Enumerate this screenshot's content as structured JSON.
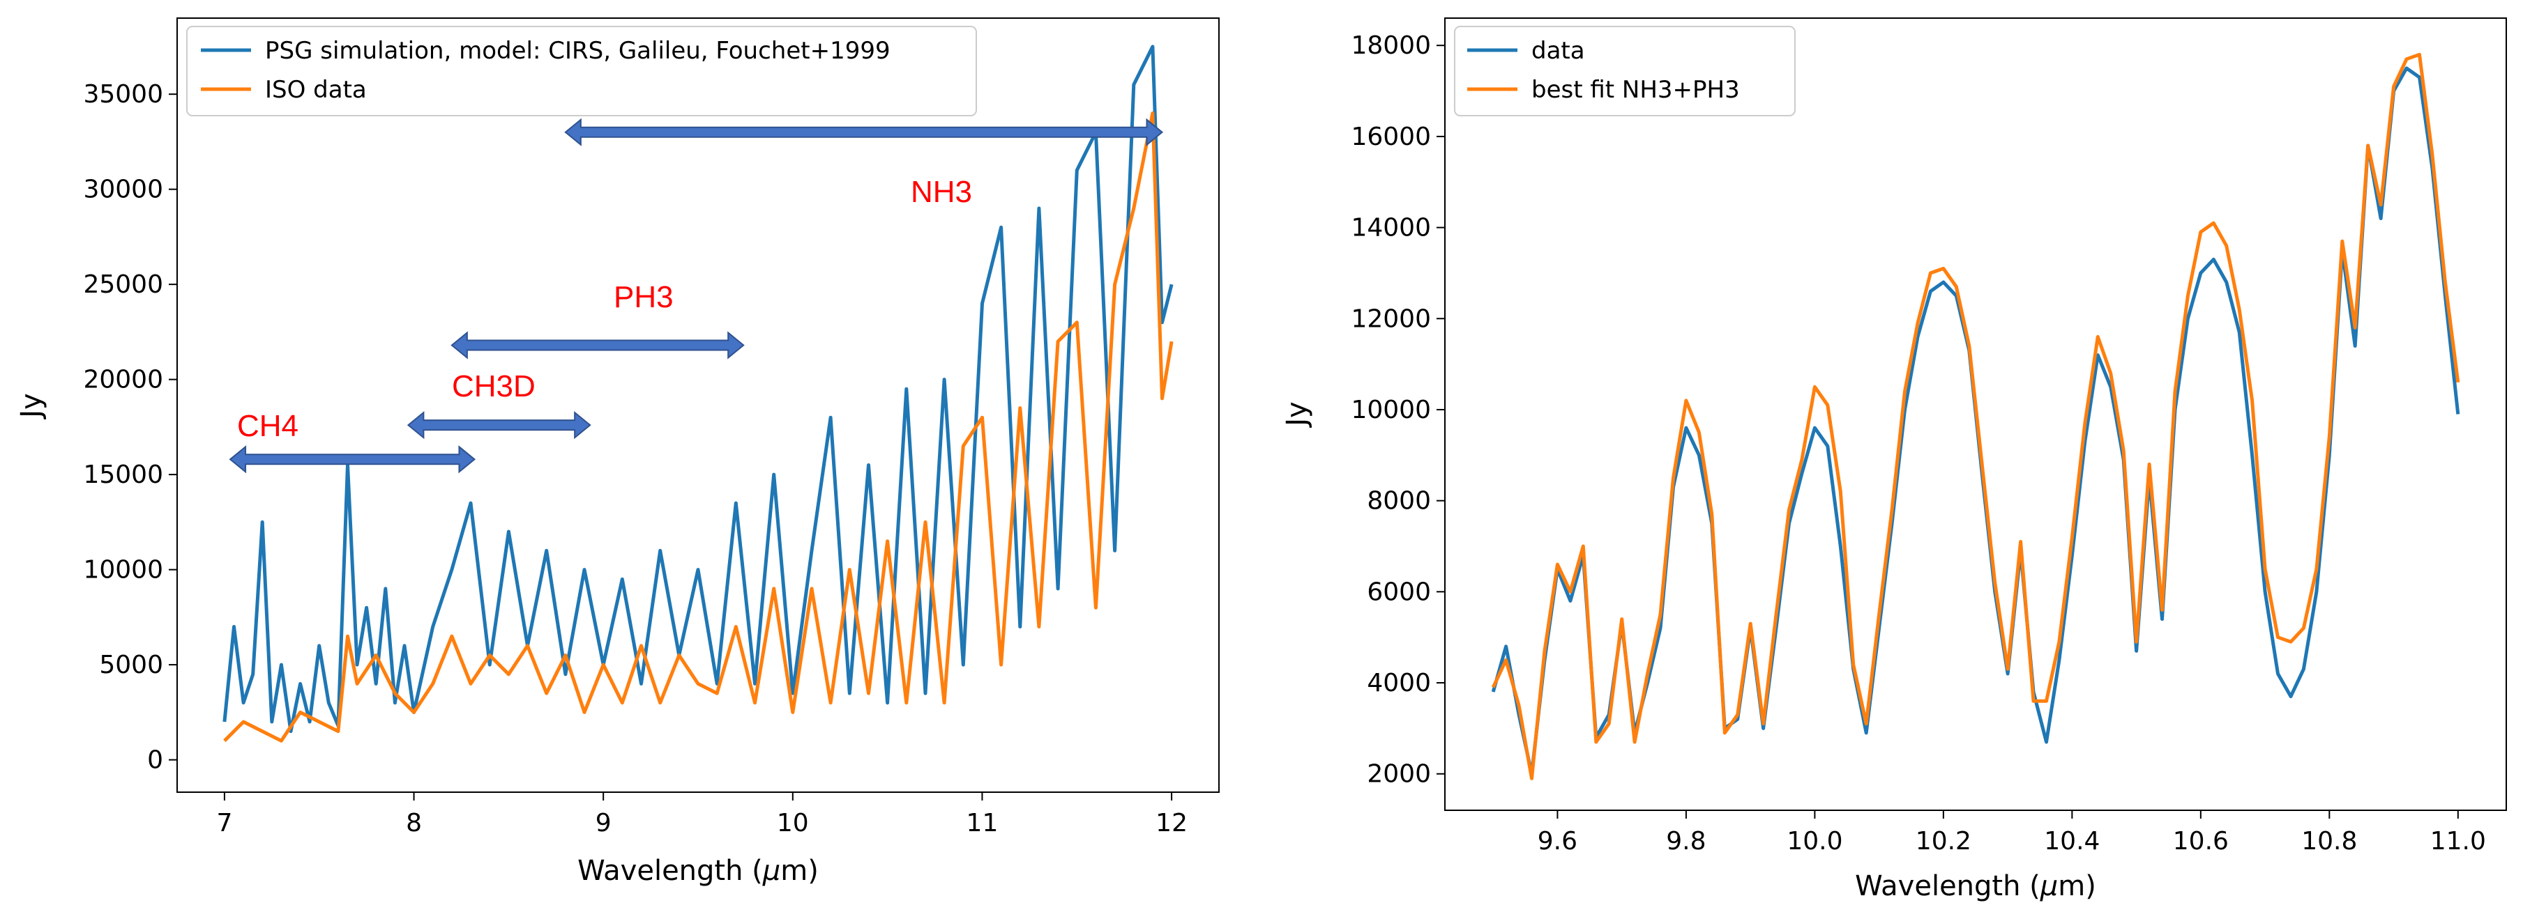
{
  "chart_data": [
    {
      "type": "line",
      "xlabel": "Wavelength (μm)",
      "ylabel": "Jy",
      "xlim": [
        6.75,
        12.25
      ],
      "ylim": [
        -1700,
        39000
      ],
      "xticks": [
        7,
        8,
        9,
        10,
        11,
        12
      ],
      "yticks": [
        0,
        5000,
        10000,
        15000,
        20000,
        25000,
        30000,
        35000
      ],
      "legend_position": "top-left",
      "series": [
        {
          "name": "PSG simulation, model: CIRS, Galileu, Fouchet+1999",
          "color": "#1f77b4",
          "x": [
            7.0,
            7.05,
            7.1,
            7.15,
            7.2,
            7.25,
            7.3,
            7.35,
            7.4,
            7.45,
            7.5,
            7.55,
            7.6,
            7.65,
            7.7,
            7.75,
            7.8,
            7.85,
            7.9,
            7.95,
            8.0,
            8.1,
            8.2,
            8.3,
            8.4,
            8.5,
            8.6,
            8.7,
            8.8,
            8.9,
            9.0,
            9.1,
            9.2,
            9.3,
            9.4,
            9.5,
            9.6,
            9.7,
            9.8,
            9.9,
            10.0,
            10.1,
            10.2,
            10.3,
            10.4,
            10.5,
            10.6,
            10.7,
            10.8,
            10.9,
            11.0,
            11.1,
            11.2,
            11.3,
            11.4,
            11.5,
            11.6,
            11.7,
            11.8,
            11.9,
            11.95,
            12.0
          ],
          "y": [
            2000,
            7000,
            3000,
            4500,
            12500,
            2000,
            5000,
            1500,
            4000,
            2000,
            6000,
            3000,
            1800,
            15500,
            5000,
            8000,
            4000,
            9000,
            3000,
            6000,
            2500,
            7000,
            10000,
            13500,
            5000,
            12000,
            6000,
            11000,
            4500,
            10000,
            5000,
            9500,
            4000,
            11000,
            5500,
            10000,
            4000,
            13500,
            4000,
            15000,
            3500,
            11000,
            18000,
            3500,
            15500,
            3000,
            19500,
            3500,
            20000,
            5000,
            24000,
            28000,
            7000,
            29000,
            9000,
            31000,
            33000,
            11000,
            35500,
            37500,
            23000,
            25000
          ]
        },
        {
          "name": "ISO data",
          "color": "#ff7f0e",
          "x": [
            7.0,
            7.1,
            7.2,
            7.3,
            7.4,
            7.5,
            7.6,
            7.65,
            7.7,
            7.8,
            7.9,
            8.0,
            8.1,
            8.2,
            8.3,
            8.4,
            8.5,
            8.6,
            8.7,
            8.8,
            8.9,
            9.0,
            9.1,
            9.2,
            9.3,
            9.4,
            9.5,
            9.6,
            9.7,
            9.8,
            9.9,
            10.0,
            10.1,
            10.2,
            10.3,
            10.4,
            10.5,
            10.6,
            10.7,
            10.8,
            10.9,
            11.0,
            11.1,
            11.2,
            11.3,
            11.4,
            11.5,
            11.6,
            11.7,
            11.8,
            11.9,
            11.95,
            12.0
          ],
          "y": [
            1000,
            2000,
            1500,
            1000,
            2500,
            2000,
            1500,
            6500,
            4000,
            5500,
            3500,
            2500,
            4000,
            6500,
            4000,
            5500,
            4500,
            6000,
            3500,
            5500,
            2500,
            5000,
            3000,
            6000,
            3000,
            5500,
            4000,
            3500,
            7000,
            3000,
            9000,
            2500,
            9000,
            3000,
            10000,
            3500,
            11500,
            3000,
            12500,
            3000,
            16500,
            18000,
            5000,
            18500,
            7000,
            22000,
            23000,
            8000,
            25000,
            29000,
            34000,
            19000,
            22000
          ]
        }
      ],
      "annotations": [
        {
          "text": "CH4",
          "color": "#ff0000"
        },
        {
          "text": "CH3D",
          "color": "#ff0000"
        },
        {
          "text": "PH3",
          "color": "#ff0000"
        },
        {
          "text": "NH3",
          "color": "#ff0000"
        }
      ],
      "range_arrows": [
        {
          "x_from": 7.03,
          "x_to": 8.32,
          "y": 15800,
          "color": "#4472c4"
        },
        {
          "x_from": 7.97,
          "x_to": 8.93,
          "y": 17600,
          "color": "#4472c4"
        },
        {
          "x_from": 8.2,
          "x_to": 9.74,
          "y": 21800,
          "color": "#4472c4"
        },
        {
          "x_from": 8.8,
          "x_to": 11.95,
          "y": 33000,
          "color": "#4472c4"
        }
      ]
    },
    {
      "type": "line",
      "xlabel": "Wavelength (μm)",
      "ylabel": "Jy",
      "xlim": [
        9.425,
        11.075
      ],
      "ylim": [
        1200,
        18600
      ],
      "xticks": [
        9.6,
        9.8,
        10.0,
        10.2,
        10.4,
        10.6,
        10.8,
        11.0
      ],
      "yticks": [
        2000,
        4000,
        6000,
        8000,
        10000,
        12000,
        14000,
        16000,
        18000
      ],
      "legend_position": "top-left",
      "series": [
        {
          "name": "data",
          "color": "#1f77b4",
          "x": [
            9.5,
            9.52,
            9.54,
            9.56,
            9.58,
            9.6,
            9.62,
            9.64,
            9.66,
            9.68,
            9.7,
            9.72,
            9.74,
            9.76,
            9.78,
            9.8,
            9.82,
            9.84,
            9.86,
            9.88,
            9.9,
            9.92,
            9.94,
            9.96,
            9.98,
            10.0,
            10.02,
            10.04,
            10.06,
            10.08,
            10.1,
            10.12,
            10.14,
            10.16,
            10.18,
            10.2,
            10.22,
            10.24,
            10.26,
            10.28,
            10.3,
            10.32,
            10.34,
            10.36,
            10.38,
            10.4,
            10.42,
            10.44,
            10.46,
            10.48,
            10.5,
            10.52,
            10.54,
            10.56,
            10.58,
            10.6,
            10.62,
            10.64,
            10.66,
            10.68,
            10.7,
            10.72,
            10.74,
            10.76,
            10.78,
            10.8,
            10.82,
            10.84,
            10.86,
            10.88,
            10.9,
            10.92,
            10.94,
            10.96,
            10.98,
            11.0
          ],
          "y": [
            3800,
            4800,
            3300,
            2000,
            4500,
            6500,
            5800,
            6800,
            2800,
            3300,
            5300,
            2900,
            4000,
            5200,
            8300,
            9600,
            9000,
            7500,
            3000,
            3200,
            5200,
            3000,
            5200,
            7500,
            8600,
            9600,
            9200,
            7000,
            4300,
            2900,
            5200,
            7500,
            10000,
            11600,
            12600,
            12800,
            12500,
            11300,
            8600,
            6000,
            4200,
            6900,
            3800,
            2700,
            4500,
            6800,
            9300,
            11200,
            10500,
            8900,
            4700,
            8500,
            5400,
            10000,
            12000,
            13000,
            13300,
            12800,
            11700,
            9000,
            6000,
            4200,
            3700,
            4300,
            6000,
            9000,
            13500,
            11400,
            15800,
            14200,
            17000,
            17500,
            17300,
            15300,
            12500,
            9900
          ]
        },
        {
          "name": "best fit NH3+PH3",
          "color": "#ff7f0e",
          "x": [
            9.5,
            9.52,
            9.54,
            9.56,
            9.58,
            9.6,
            9.62,
            9.64,
            9.66,
            9.68,
            9.7,
            9.72,
            9.74,
            9.76,
            9.78,
            9.8,
            9.82,
            9.84,
            9.86,
            9.88,
            9.9,
            9.92,
            9.94,
            9.96,
            9.98,
            10.0,
            10.02,
            10.04,
            10.06,
            10.08,
            10.1,
            10.12,
            10.14,
            10.16,
            10.18,
            10.2,
            10.22,
            10.24,
            10.26,
            10.28,
            10.3,
            10.32,
            10.34,
            10.36,
            10.38,
            10.4,
            10.42,
            10.44,
            10.46,
            10.48,
            10.5,
            10.52,
            10.54,
            10.56,
            10.58,
            10.6,
            10.62,
            10.64,
            10.66,
            10.68,
            10.7,
            10.72,
            10.74,
            10.76,
            10.78,
            10.8,
            10.82,
            10.84,
            10.86,
            10.88,
            10.9,
            10.92,
            10.94,
            10.96,
            10.98,
            11.0
          ],
          "y": [
            3900,
            4500,
            3500,
            1900,
            4700,
            6600,
            6000,
            7000,
            2700,
            3100,
            5400,
            2700,
            4200,
            5500,
            8500,
            10200,
            9500,
            7700,
            2900,
            3300,
            5300,
            3100,
            5500,
            7800,
            8900,
            10500,
            10100,
            8200,
            4400,
            3100,
            5500,
            7800,
            10400,
            11900,
            13000,
            13100,
            12700,
            11400,
            8800,
            6200,
            4300,
            7100,
            3600,
            3600,
            4900,
            7200,
            9700,
            11600,
            10800,
            9100,
            4900,
            8800,
            5600,
            10400,
            12500,
            13900,
            14100,
            13600,
            12200,
            10200,
            6500,
            5000,
            4900,
            5200,
            6500,
            9400,
            13700,
            11800,
            15800,
            14500,
            17100,
            17700,
            17800,
            15600,
            12800,
            10600
          ]
        }
      ]
    }
  ]
}
